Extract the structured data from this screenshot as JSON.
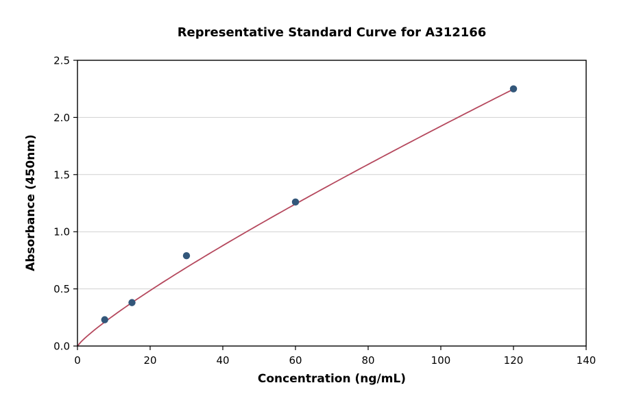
{
  "chart_data": {
    "type": "scatter",
    "title": "Representative Standard Curve for A312166",
    "xlabel": "Concentration (ng/mL)",
    "ylabel": "Absorbance (450nm)",
    "xlim": [
      0,
      140
    ],
    "ylim": [
      0,
      2.5
    ],
    "x_ticks": [
      0,
      20,
      40,
      60,
      80,
      100,
      120,
      140
    ],
    "x_tick_labels": [
      "0",
      "20",
      "40",
      "60",
      "80",
      "100",
      "120",
      "140"
    ],
    "y_ticks": [
      0,
      0.5,
      1,
      1.5,
      2,
      2.5
    ],
    "y_tick_labels": [
      "0.0",
      "0.5",
      "1.0",
      "1.5",
      "2.0",
      "2.5"
    ],
    "grid": "horizontal",
    "legend": "none",
    "points": [
      {
        "x": 7.5,
        "y": 0.23
      },
      {
        "x": 15,
        "y": 0.38
      },
      {
        "x": 30,
        "y": 0.79
      },
      {
        "x": 60,
        "y": 1.26
      },
      {
        "x": 120,
        "y": 2.25
      }
    ],
    "fit_curve": {
      "model": "power",
      "a": 0.0375,
      "b": 0.855,
      "x_start": 0,
      "x_end": 120
    },
    "colors": {
      "point": "#33577a",
      "curve": "#b5485d",
      "grid": "#d0d0d0",
      "axis": "#000000",
      "background": "#ffffff"
    }
  }
}
